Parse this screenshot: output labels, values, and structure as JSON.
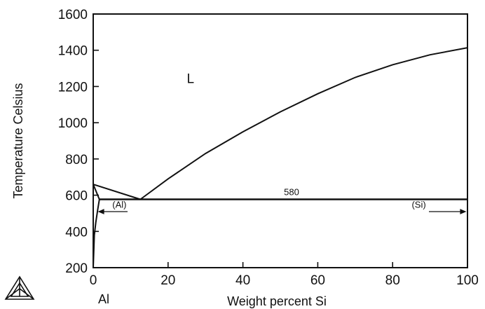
{
  "chart_data": {
    "type": "line",
    "title": "",
    "xlabel": "Weight percent Si",
    "ylabel": "Temperature Celsius",
    "xlim": [
      0,
      100
    ],
    "ylim": [
      200,
      1600
    ],
    "xticks": [
      0,
      20,
      40,
      60,
      80,
      100
    ],
    "yticks": [
      200,
      400,
      600,
      800,
      1000,
      1200,
      1400,
      1600
    ],
    "grid": false,
    "element_label": "Al",
    "series": [
      {
        "values": [
          {
            "x": 0,
            "y": 660
          },
          {
            "x": 12.6,
            "y": 577
          }
        ]
      },
      {
        "values": [
          {
            "x": 12.6,
            "y": 577
          },
          {
            "x": 20,
            "y": 690
          },
          {
            "x": 30,
            "y": 830
          },
          {
            "x": 40,
            "y": 950
          },
          {
            "x": 50,
            "y": 1060
          },
          {
            "x": 60,
            "y": 1160
          },
          {
            "x": 70,
            "y": 1250
          },
          {
            "x": 80,
            "y": 1320
          },
          {
            "x": 90,
            "y": 1375
          },
          {
            "x": 100,
            "y": 1414
          }
        ]
      },
      {
        "values": [
          {
            "x": 0,
            "y": 660
          },
          {
            "x": 1.65,
            "y": 577
          }
        ]
      },
      {
        "values": [
          {
            "x": 1.65,
            "y": 577
          },
          {
            "x": 1.2,
            "y": 520
          },
          {
            "x": 0.7,
            "y": 450
          },
          {
            "x": 0.3,
            "y": 380
          },
          {
            "x": 0,
            "y": 200
          }
        ]
      },
      {
        "values": [
          {
            "x": 1.65,
            "y": 577
          },
          {
            "x": 100,
            "y": 577
          }
        ]
      }
    ],
    "annotations": [
      {
        "text": "L",
        "x": 26,
        "y": 1220
      },
      {
        "text": "580",
        "x": 53,
        "y": 600
      },
      {
        "text": "(Al)",
        "x": 7,
        "y": 530
      },
      {
        "text": "(Si)",
        "x": 87,
        "y": 530
      }
    ]
  }
}
